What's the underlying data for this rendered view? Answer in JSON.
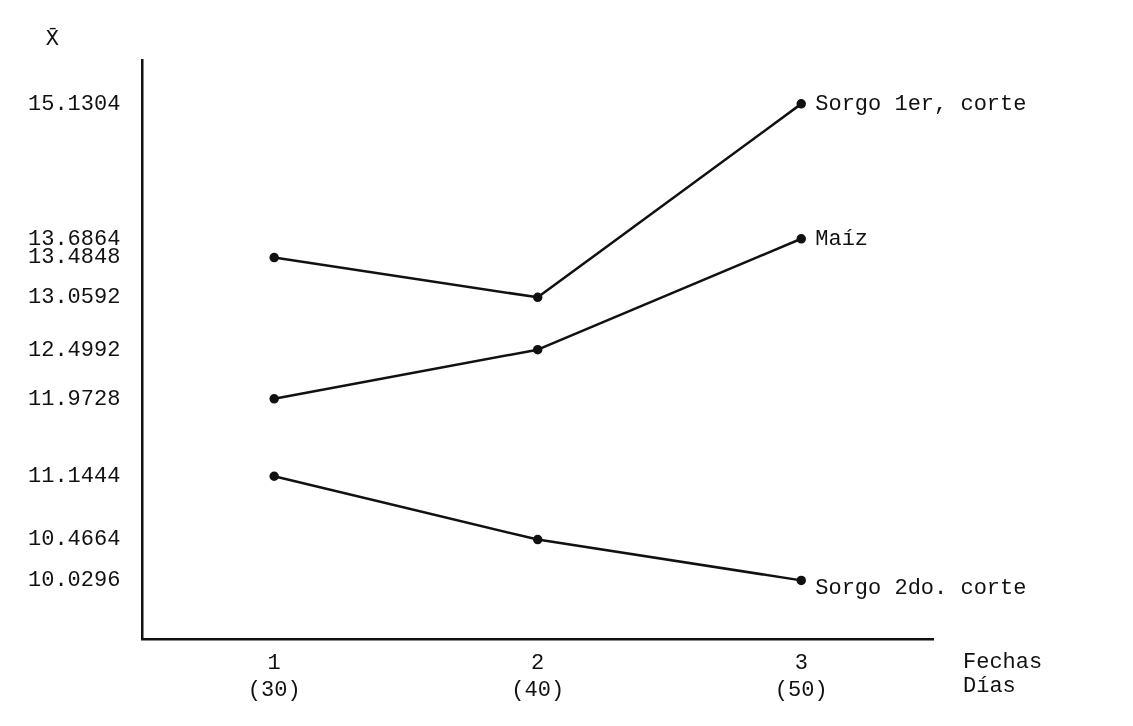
{
  "chart_data": {
    "type": "line",
    "ylabel": "X̄",
    "xlabel": "Fechas\nDías",
    "categories": [
      "1\n(30)",
      "2\n(40)",
      "3\n(50)"
    ],
    "series": [
      {
        "name": "Sorgo 1er, corte",
        "color": "#111111",
        "values": [
          13.4848,
          13.0592,
          15.1304
        ]
      },
      {
        "name": "Maíz",
        "color": "#111111",
        "values": [
          11.9728,
          12.4992,
          13.6864
        ]
      },
      {
        "name": "Sorgo 2do. corte",
        "color": "#111111",
        "values": [
          11.1444,
          10.4664,
          10.0296
        ]
      }
    ],
    "ylim": [
      9.4,
      15.6
    ],
    "yticks": [
      10.0296,
      10.4664,
      11.1444,
      11.9728,
      12.4992,
      13.0592,
      13.4848,
      13.6864,
      15.1304
    ],
    "marker": "circle",
    "line_style": "solid"
  }
}
